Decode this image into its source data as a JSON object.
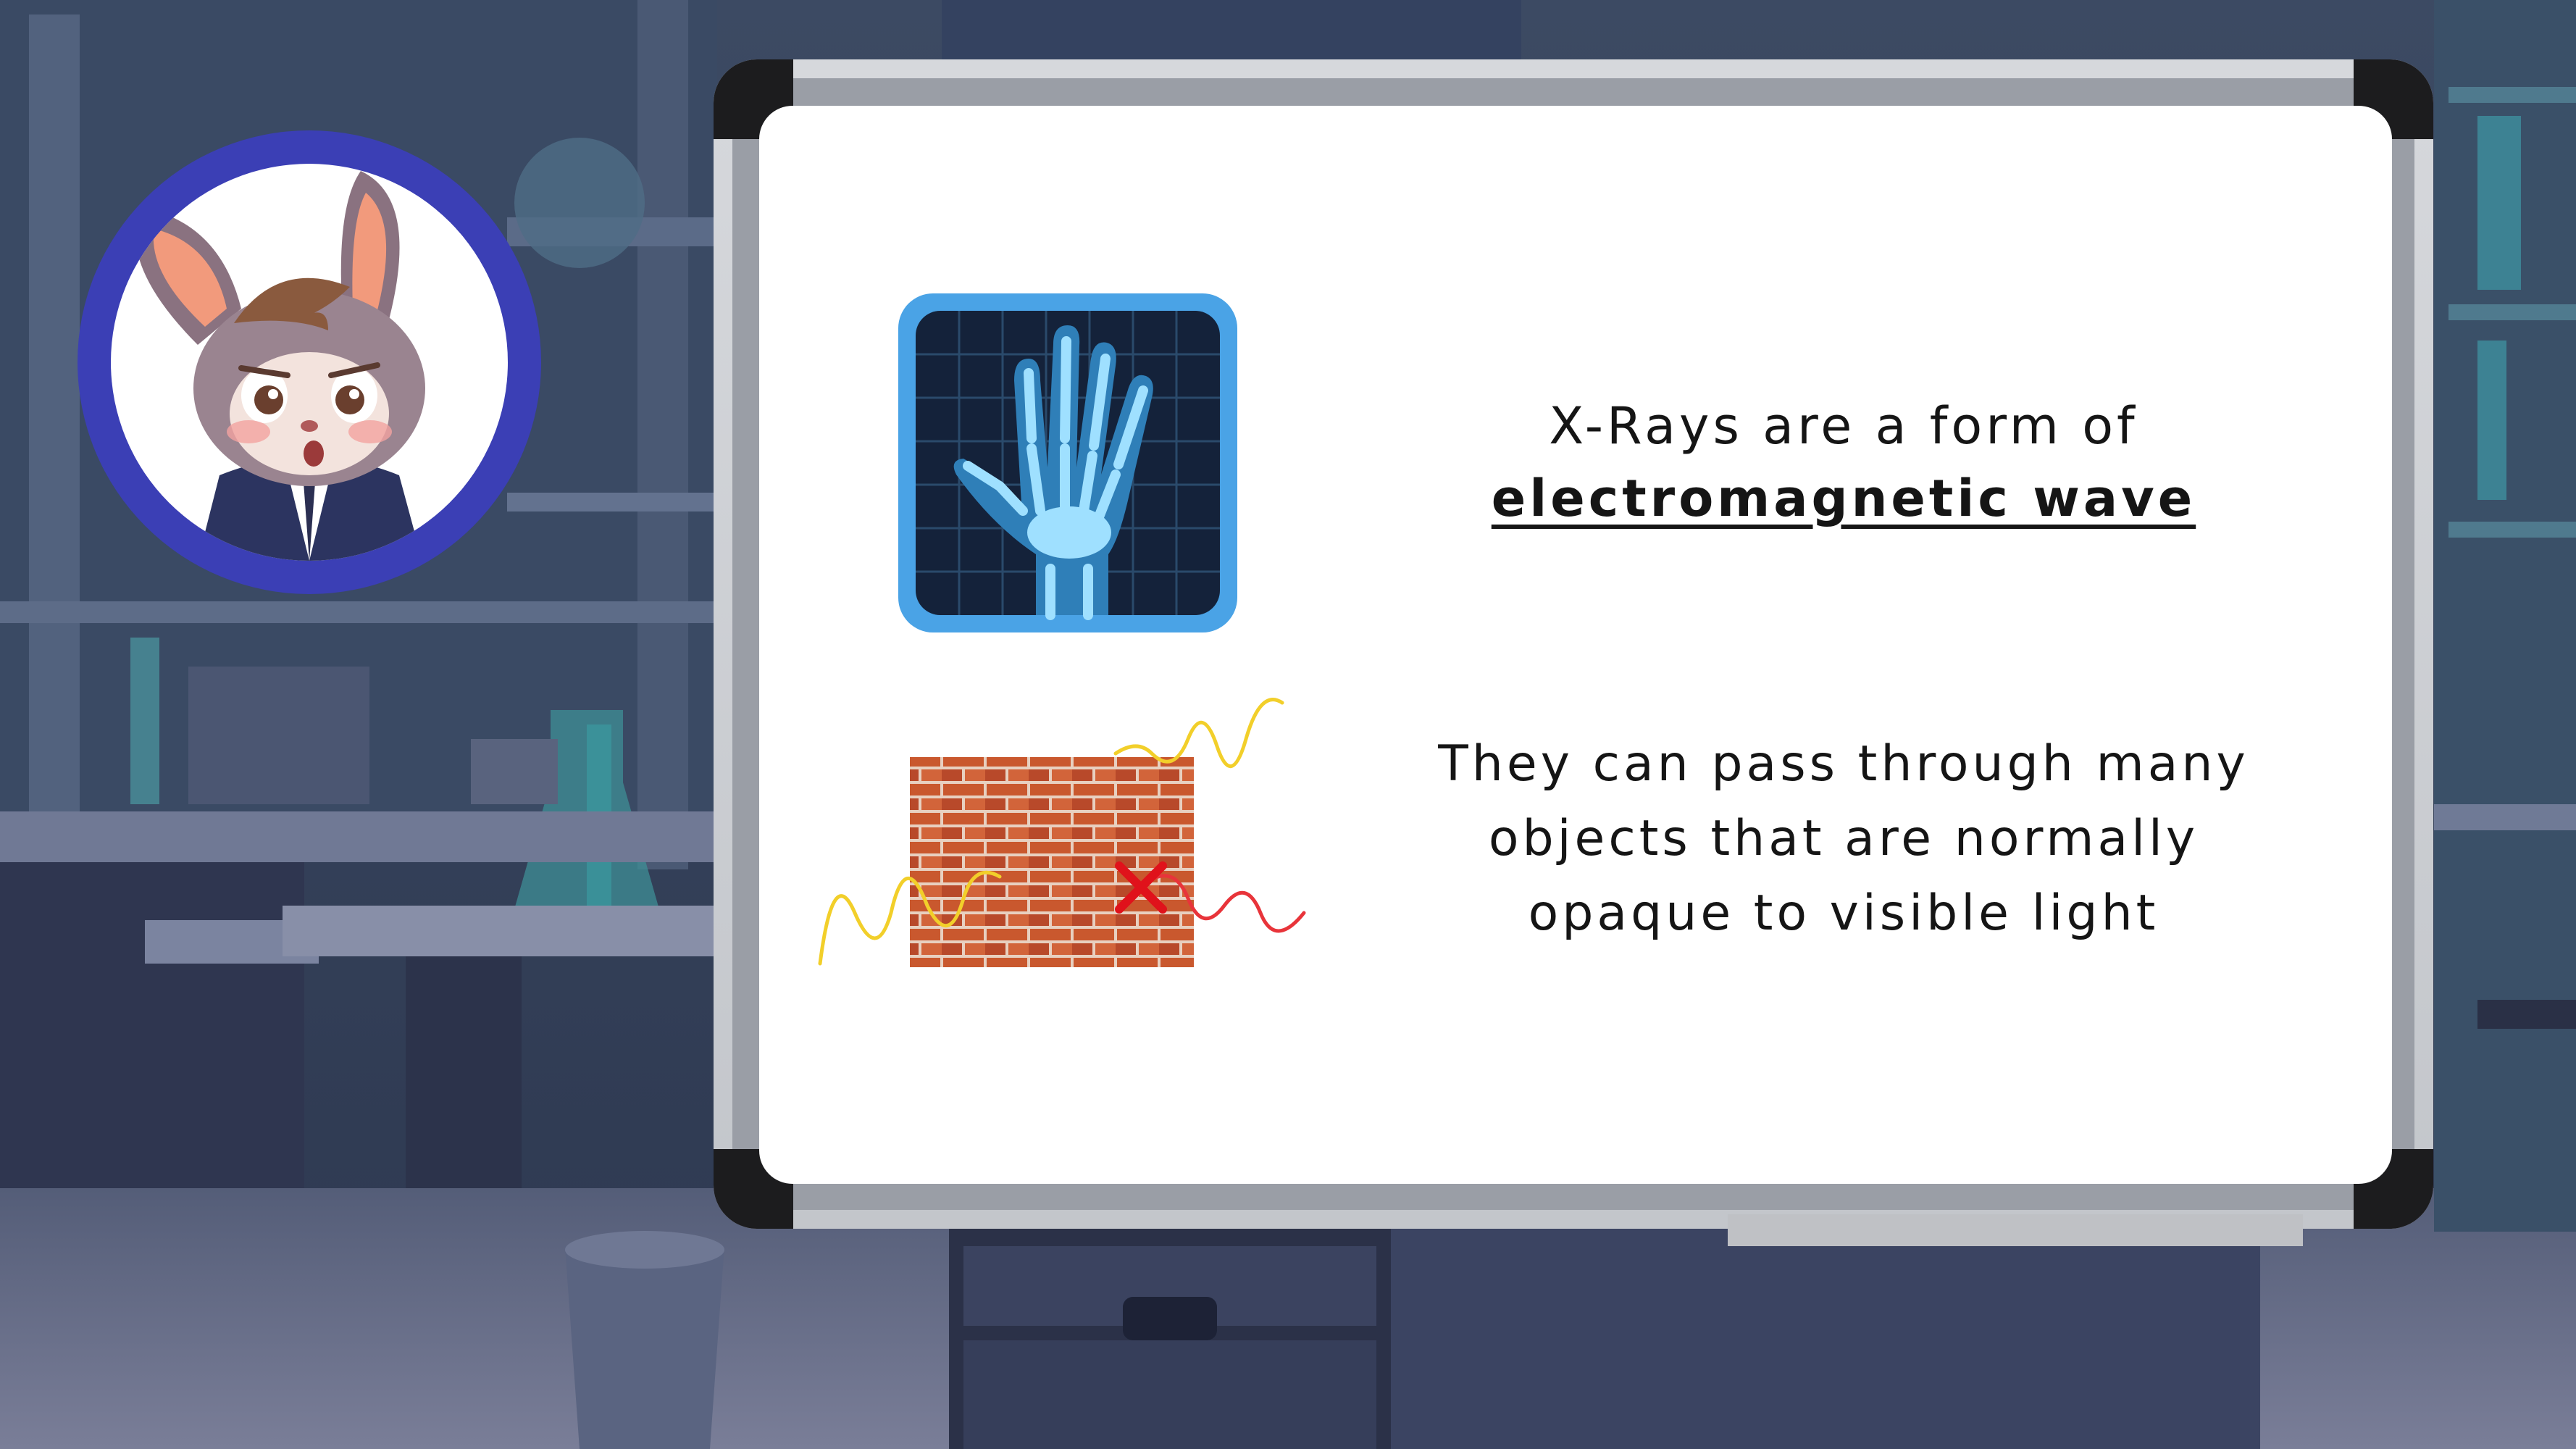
{
  "slide": {
    "text1_prefix": "X-Rays are a form of",
    "text1_emphasis": "electromagnetic wave",
    "text2_lines": [
      "They can pass through many",
      "objects that are normally",
      "opaque to visible light"
    ]
  },
  "icons": {
    "avatar": "rabbit-character-avatar",
    "xray": "xray-hand-icon",
    "brick": "brick-wall-wave-icon",
    "blocked": "red-x-mark"
  },
  "colors": {
    "avatar_ring": "#3b3fb5",
    "xray_frame": "#4aa3e6",
    "xray_bones": "#7fd0f5",
    "brick": "#c9582e",
    "wave_yellow": "#f2cf2a",
    "wave_red": "#e8343a",
    "x_mark": "#e0121b"
  }
}
